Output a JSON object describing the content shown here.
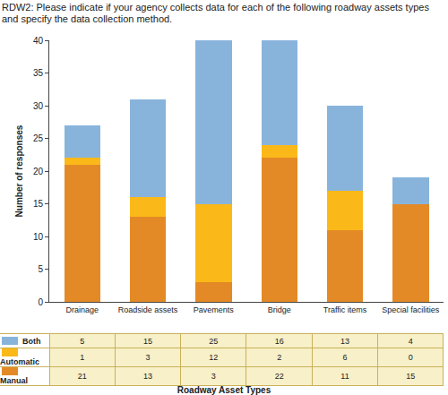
{
  "chart_data": {
    "type": "bar",
    "title": "RDW2: Please indicate if your agency collects data for each of the following roadway assets types and specify the data collection method.",
    "xlabel": "Roadway Asset Types",
    "ylabel": "Number of responses",
    "categories": [
      "Drainage",
      "Roadside assets",
      "Pavements",
      "Bridge",
      "Traffic items",
      "Special facilities"
    ],
    "series": [
      {
        "name": "Both",
        "color": "#88b4dc",
        "values": [
          5,
          15,
          25,
          16,
          13,
          4
        ]
      },
      {
        "name": "Automatic",
        "color": "#fbb919",
        "values": [
          1,
          3,
          12,
          2,
          6,
          0
        ]
      },
      {
        "name": "Manual",
        "color": "#e38a26",
        "values": [
          21,
          13,
          3,
          22,
          11,
          15
        ]
      }
    ],
    "stacked": true,
    "ylim": [
      0,
      40
    ],
    "yticks": [
      0,
      5,
      10,
      15,
      20,
      25,
      30,
      35,
      40
    ],
    "grid": false
  }
}
